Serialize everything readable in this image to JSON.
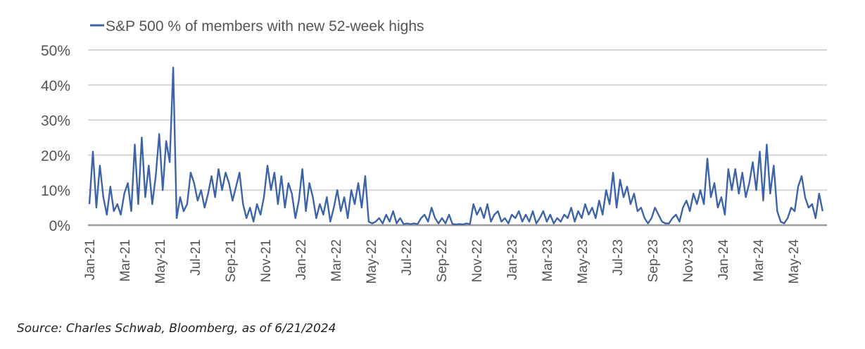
{
  "chart_data": {
    "type": "line",
    "title": "",
    "xlabel": "",
    "ylabel": "",
    "ylim": [
      0,
      50
    ],
    "yticks": [
      0,
      10,
      20,
      30,
      40,
      50
    ],
    "ytick_labels": [
      "0%",
      "10%",
      "20%",
      "30%",
      "40%",
      "50%"
    ],
    "x_start": "Jan-21",
    "x_end": "2024-06-21",
    "xtick_labels": [
      "Jan-21",
      "Mar-21",
      "May-21",
      "Jul-21",
      "Sep-21",
      "Nov-21",
      "Jan-22",
      "Mar-22",
      "May-22",
      "Jul-22",
      "Sep-22",
      "Nov-22",
      "Jan-23",
      "Mar-23",
      "May-23",
      "Jul-23",
      "Sep-23",
      "Nov-23",
      "Jan-24",
      "Mar-24",
      "May-24"
    ],
    "grid": true,
    "legend_position": "top-left",
    "color": "#3d64a8",
    "series": [
      {
        "name": "S&P 500 % of members with new 52-week highs",
        "values": [
          6,
          21,
          5,
          17,
          8,
          3,
          11,
          4,
          6,
          3,
          9,
          12,
          4,
          23,
          6,
          25,
          8,
          17,
          6,
          14,
          26,
          10,
          24,
          18,
          45,
          2,
          8,
          4,
          6,
          15,
          12,
          7,
          10,
          5,
          9,
          14,
          8,
          16,
          10,
          15,
          12,
          7,
          11,
          15,
          6,
          2,
          5,
          1,
          6,
          3,
          8,
          17,
          10,
          15,
          6,
          14,
          5,
          12,
          9,
          2,
          7,
          16,
          4,
          12,
          8,
          2,
          6,
          3,
          8,
          1,
          5,
          10,
          4,
          8,
          2,
          10,
          6,
          12,
          5,
          14,
          1,
          0.5,
          1,
          2,
          0.5,
          3,
          1,
          4,
          0.5,
          2,
          0.3,
          0.5,
          0.3,
          0.5,
          0.3,
          2,
          3,
          1,
          5,
          2,
          0.5,
          2,
          0.5,
          3,
          0.3,
          0.2,
          0.3,
          0.2,
          0.5,
          0.3,
          6,
          3,
          5,
          2,
          6,
          1,
          3,
          4,
          1,
          2,
          0.5,
          3,
          2,
          4,
          1,
          3,
          1,
          4,
          0.5,
          2,
          4,
          1,
          3,
          0.5,
          2,
          1,
          3,
          2,
          5,
          1,
          4,
          2,
          6,
          3,
          5,
          2,
          7,
          3,
          10,
          6,
          15,
          5,
          13,
          8,
          11,
          6,
          9,
          4,
          5,
          2,
          0.5,
          2,
          5,
          3,
          1,
          0.5,
          0.5,
          2,
          3,
          1,
          5,
          7,
          4,
          9,
          6,
          10,
          6,
          19,
          8,
          12,
          5,
          8,
          3,
          16,
          10,
          16,
          9,
          15,
          8,
          12,
          18,
          10,
          21,
          7,
          23,
          9,
          17,
          4,
          1,
          0.5,
          2,
          5,
          4,
          11,
          14,
          8,
          5,
          6,
          2,
          9,
          4
        ]
      }
    ]
  },
  "source": "Source: Charles Schwab, Bloomberg, as of 6/21/2024"
}
